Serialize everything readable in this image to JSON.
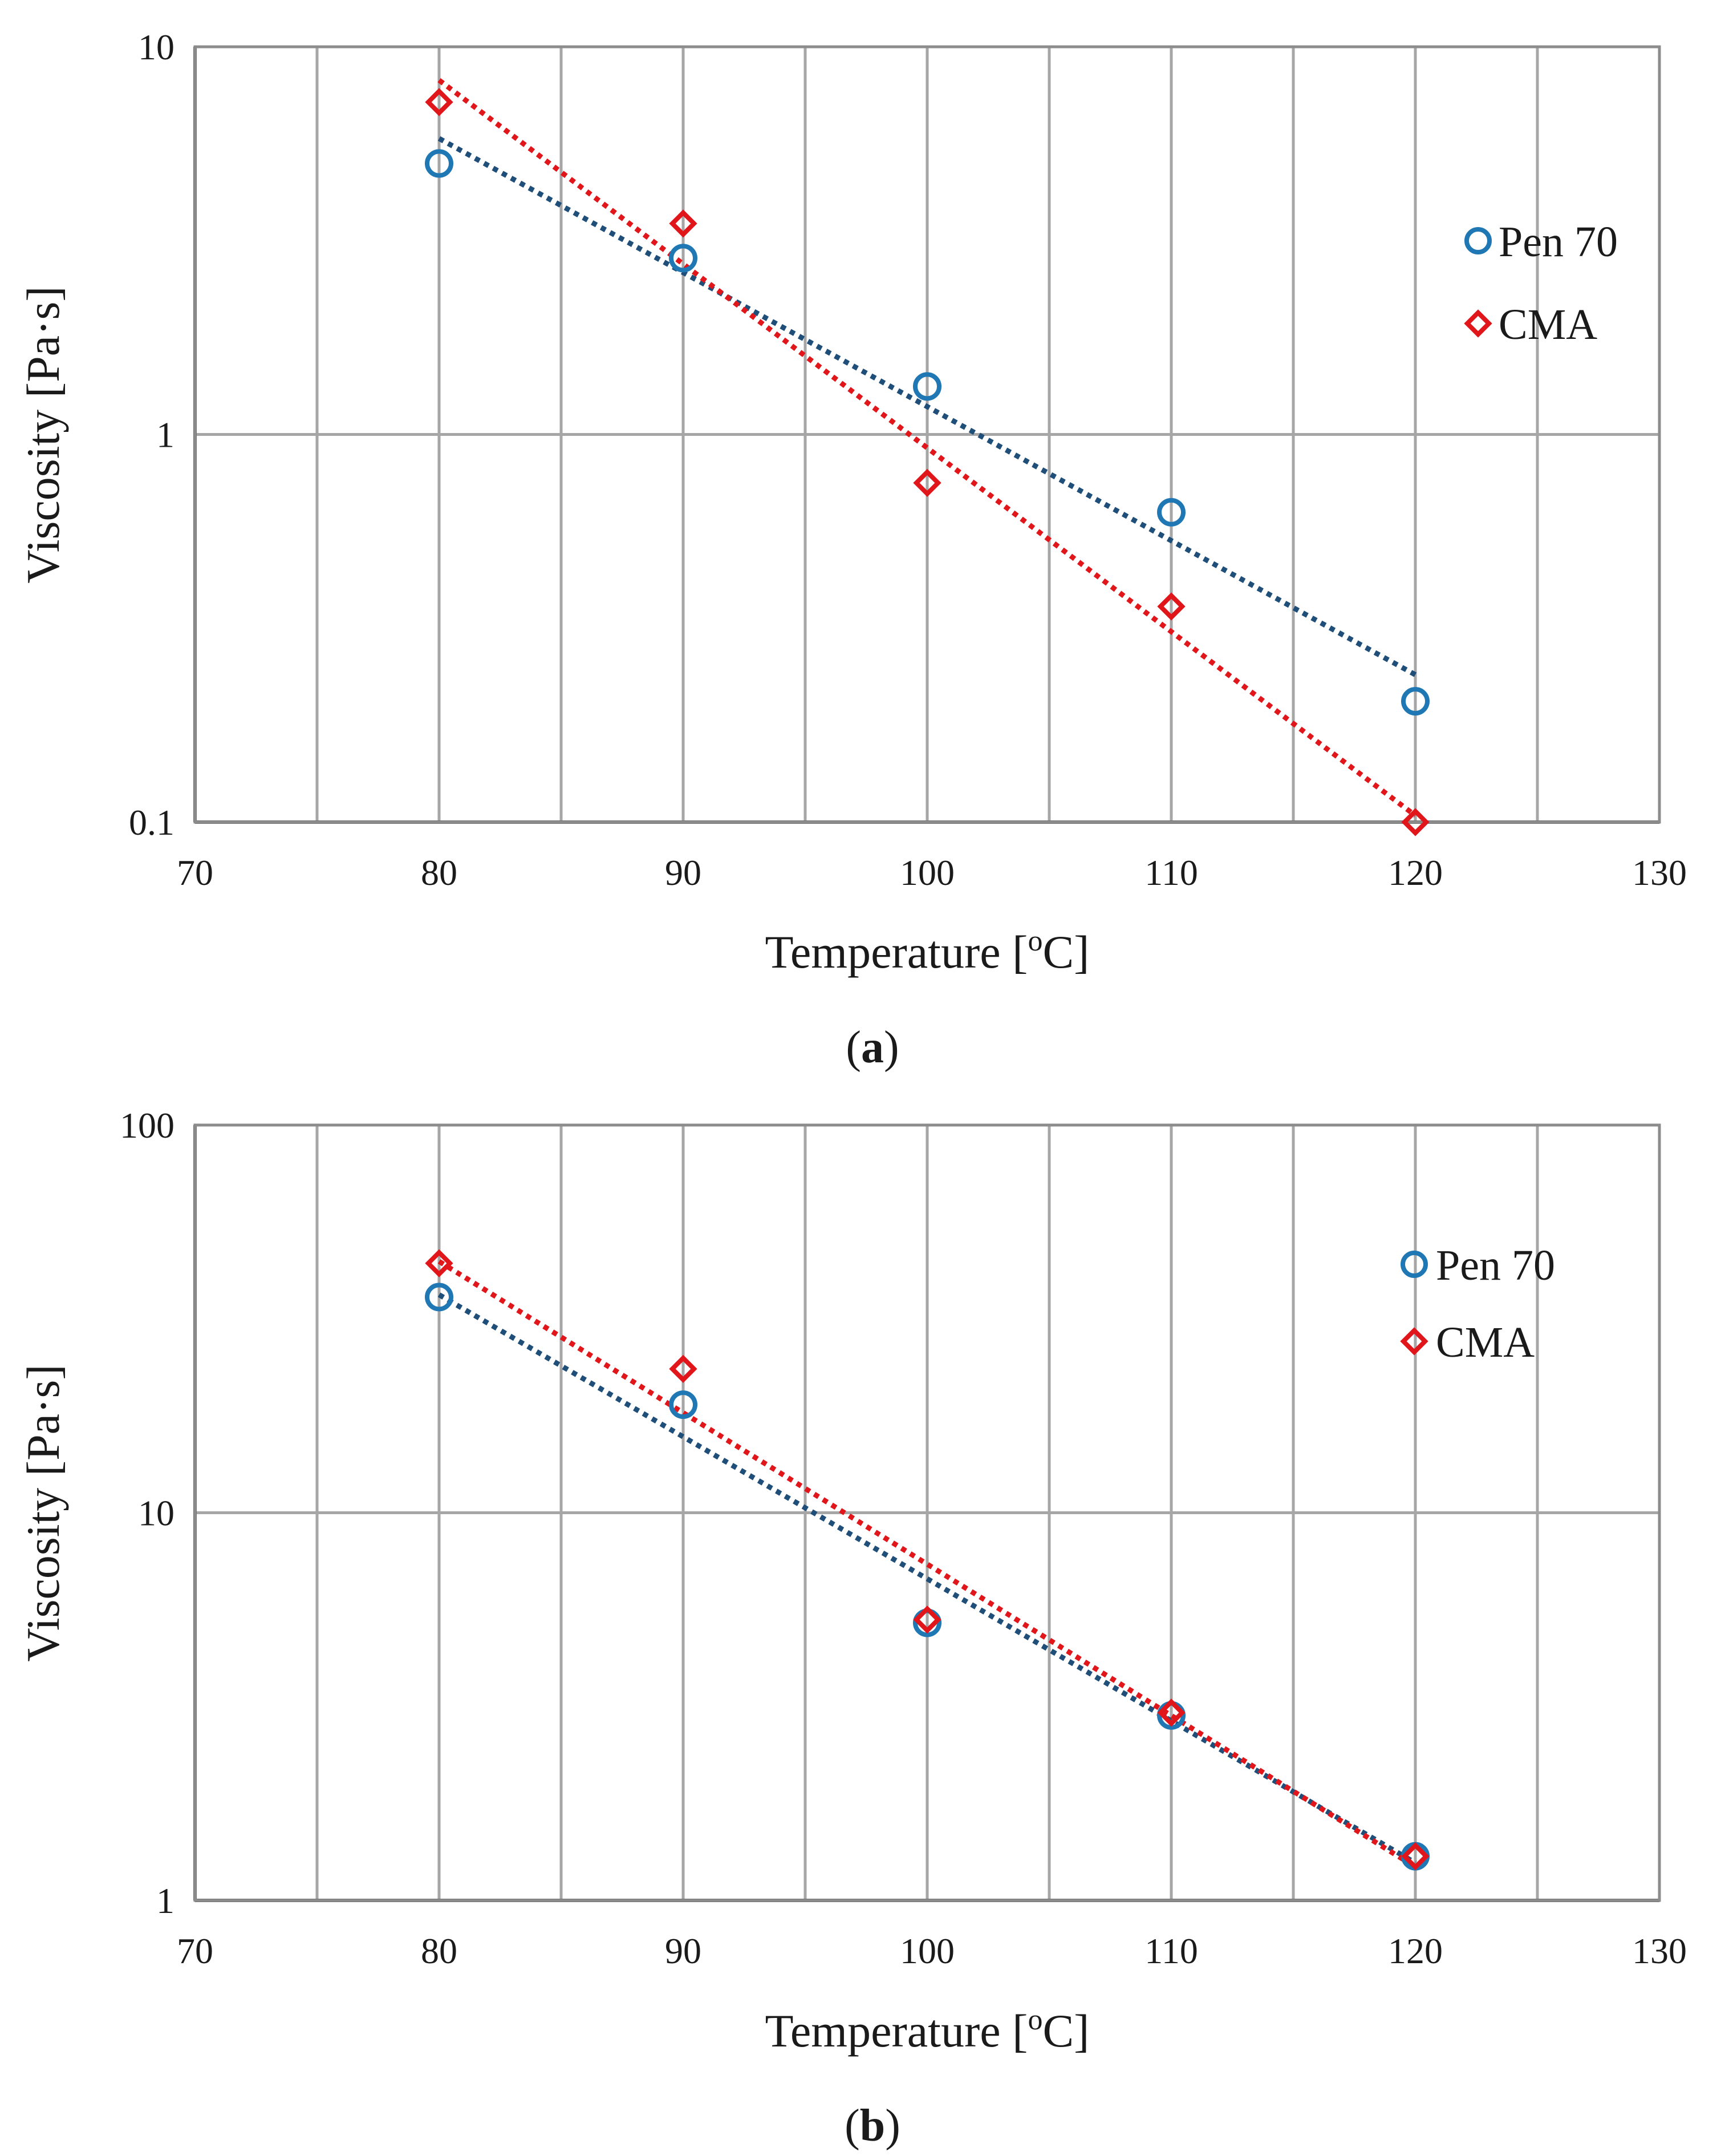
{
  "chart_data": [
    {
      "type": "scatter",
      "panel_label": "a",
      "xlabel_main": "Temperature [",
      "xlabel_sup": "o",
      "xlabel_tail": "C]",
      "ylabel": "Viscosity [Pa·s]",
      "xlim": [
        70,
        130
      ],
      "ylim": [
        0.1,
        10
      ],
      "yscale": "log",
      "x_ticks": [
        "70",
        "80",
        "90",
        "100",
        "110",
        "120",
        "130"
      ],
      "x_grid": [
        75,
        80,
        85,
        90,
        95,
        100,
        105,
        110,
        115,
        120,
        125
      ],
      "y_ticks": [
        {
          "value": 0.1,
          "label": "0.1"
        },
        {
          "value": 1,
          "label": "1"
        },
        {
          "value": 10,
          "label": "10"
        }
      ],
      "legend_position": "right",
      "series": [
        {
          "name": "Pen 70",
          "marker": "circle",
          "color": "#1f77b4",
          "trend_color": "#1f4e79",
          "x": [
            80,
            90,
            100,
            110,
            120
          ],
          "y": [
            5.0,
            2.85,
            1.33,
            0.63,
            0.205
          ],
          "trend": [
            [
              80,
              5.8
            ],
            [
              120,
              0.24
            ]
          ]
        },
        {
          "name": "CMA",
          "marker": "diamond",
          "color": "#e0161b",
          "trend_color": "#e0161b",
          "x": [
            80,
            90,
            100,
            110,
            120
          ],
          "y": [
            7.2,
            3.5,
            0.75,
            0.36,
            0.1
          ],
          "trend": [
            [
              80,
              8.2
            ],
            [
              120,
              0.104
            ]
          ]
        }
      ]
    },
    {
      "type": "scatter",
      "panel_label": "b",
      "xlabel_main": "Temperature [",
      "xlabel_sup": "o",
      "xlabel_tail": "C]",
      "ylabel": "Viscosity [Pa·s]",
      "xlim": [
        70,
        130
      ],
      "ylim": [
        1,
        100
      ],
      "yscale": "log",
      "x_ticks": [
        "70",
        "80",
        "90",
        "100",
        "110",
        "120",
        "130"
      ],
      "x_grid": [
        75,
        80,
        85,
        90,
        95,
        100,
        105,
        110,
        115,
        120,
        125
      ],
      "y_ticks": [
        {
          "value": 1,
          "label": "1"
        },
        {
          "value": 10,
          "label": "10"
        },
        {
          "value": 100,
          "label": "100"
        }
      ],
      "legend_position": "right",
      "series": [
        {
          "name": "Pen 70",
          "marker": "circle",
          "color": "#1f77b4",
          "trend_color": "#1f4e79",
          "x": [
            80,
            90,
            100,
            110,
            120
          ],
          "y": [
            36.0,
            19.0,
            5.2,
            3.0,
            1.3
          ],
          "trend": [
            [
              80,
              36.5
            ],
            [
              120,
              1.25
            ]
          ]
        },
        {
          "name": "CMA",
          "marker": "diamond",
          "color": "#e0161b",
          "trend_color": "#e0161b",
          "x": [
            80,
            90,
            100,
            110,
            120
          ],
          "y": [
            44.0,
            23.5,
            5.3,
            3.05,
            1.3
          ],
          "trend": [
            [
              80,
              44.5
            ],
            [
              120,
              1.22
            ]
          ]
        }
      ]
    }
  ]
}
